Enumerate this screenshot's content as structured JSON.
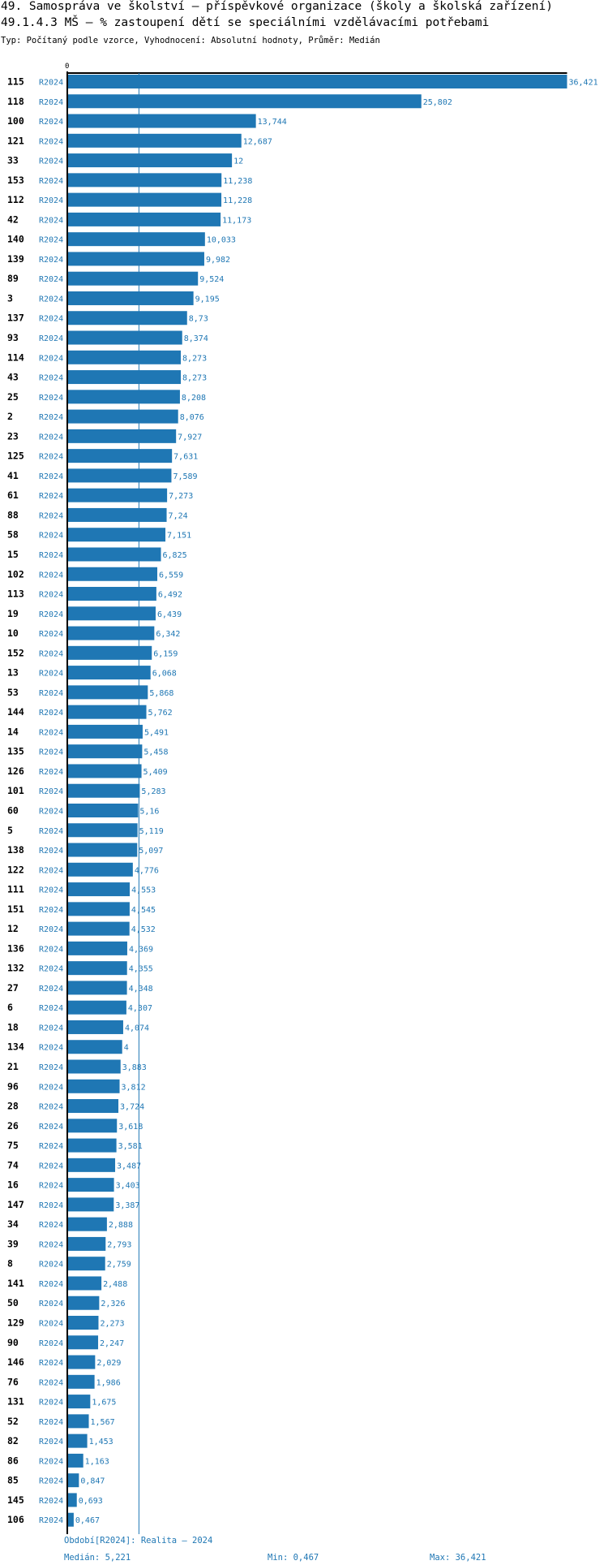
{
  "header": {
    "title_line1": "49. Samospráva ve školství – příspěvkové organizace (školy a školská zařízení)",
    "title_line2": "49.1.4.3 MŠ – % zastoupení dětí se speciálními vzdělávacími potřebami",
    "subtitle": "Typ: Počítaný podle vzorce, Vyhodnocení: Absolutní hodnoty, Průměr: Medián"
  },
  "colors": {
    "bar": "#1f77b4",
    "label": "#1f77b4",
    "axis": "#000000",
    "median_line": "#1f77b4"
  },
  "chart_data": {
    "type": "bar",
    "orientation": "horizontal",
    "x_zero_label": "0",
    "series_label": "R2024",
    "median": 5.221,
    "xlim": [
      0,
      36.421
    ],
    "rows": [
      {
        "id": "115",
        "value": 36.421,
        "label": "36,421"
      },
      {
        "id": "118",
        "value": 25.802,
        "label": "25,802"
      },
      {
        "id": "100",
        "value": 13.744,
        "label": "13,744"
      },
      {
        "id": "121",
        "value": 12.687,
        "label": "12,687"
      },
      {
        "id": "33",
        "value": 12,
        "label": "12"
      },
      {
        "id": "153",
        "value": 11.238,
        "label": "11,238"
      },
      {
        "id": "112",
        "value": 11.228,
        "label": "11,228"
      },
      {
        "id": "42",
        "value": 11.173,
        "label": "11,173"
      },
      {
        "id": "140",
        "value": 10.033,
        "label": "10,033"
      },
      {
        "id": "139",
        "value": 9.982,
        "label": "9,982"
      },
      {
        "id": "89",
        "value": 9.524,
        "label": "9,524"
      },
      {
        "id": "3",
        "value": 9.195,
        "label": "9,195"
      },
      {
        "id": "137",
        "value": 8.73,
        "label": "8,73"
      },
      {
        "id": "93",
        "value": 8.374,
        "label": "8,374"
      },
      {
        "id": "114",
        "value": 8.273,
        "label": "8,273"
      },
      {
        "id": "43",
        "value": 8.273,
        "label": "8,273"
      },
      {
        "id": "25",
        "value": 8.208,
        "label": "8,208"
      },
      {
        "id": "2",
        "value": 8.076,
        "label": "8,076"
      },
      {
        "id": "23",
        "value": 7.927,
        "label": "7,927"
      },
      {
        "id": "125",
        "value": 7.631,
        "label": "7,631"
      },
      {
        "id": "41",
        "value": 7.589,
        "label": "7,589"
      },
      {
        "id": "61",
        "value": 7.273,
        "label": "7,273"
      },
      {
        "id": "88",
        "value": 7.24,
        "label": "7,24"
      },
      {
        "id": "58",
        "value": 7.151,
        "label": "7,151"
      },
      {
        "id": "15",
        "value": 6.825,
        "label": "6,825"
      },
      {
        "id": "102",
        "value": 6.559,
        "label": "6,559"
      },
      {
        "id": "113",
        "value": 6.492,
        "label": "6,492"
      },
      {
        "id": "19",
        "value": 6.439,
        "label": "6,439"
      },
      {
        "id": "10",
        "value": 6.342,
        "label": "6,342"
      },
      {
        "id": "152",
        "value": 6.159,
        "label": "6,159"
      },
      {
        "id": "13",
        "value": 6.068,
        "label": "6,068"
      },
      {
        "id": "53",
        "value": 5.868,
        "label": "5,868"
      },
      {
        "id": "144",
        "value": 5.762,
        "label": "5,762"
      },
      {
        "id": "14",
        "value": 5.491,
        "label": "5,491"
      },
      {
        "id": "135",
        "value": 5.458,
        "label": "5,458"
      },
      {
        "id": "126",
        "value": 5.409,
        "label": "5,409"
      },
      {
        "id": "101",
        "value": 5.283,
        "label": "5,283"
      },
      {
        "id": "60",
        "value": 5.16,
        "label": "5,16"
      },
      {
        "id": "5",
        "value": 5.119,
        "label": "5,119"
      },
      {
        "id": "138",
        "value": 5.097,
        "label": "5,097"
      },
      {
        "id": "122",
        "value": 4.776,
        "label": "4,776"
      },
      {
        "id": "111",
        "value": 4.553,
        "label": "4,553"
      },
      {
        "id": "151",
        "value": 4.545,
        "label": "4,545"
      },
      {
        "id": "12",
        "value": 4.532,
        "label": "4,532"
      },
      {
        "id": "136",
        "value": 4.369,
        "label": "4,369"
      },
      {
        "id": "132",
        "value": 4.355,
        "label": "4,355"
      },
      {
        "id": "27",
        "value": 4.348,
        "label": "4,348"
      },
      {
        "id": "6",
        "value": 4.307,
        "label": "4,307"
      },
      {
        "id": "18",
        "value": 4.074,
        "label": "4,074"
      },
      {
        "id": "134",
        "value": 4,
        "label": "4"
      },
      {
        "id": "21",
        "value": 3.883,
        "label": "3,883"
      },
      {
        "id": "96",
        "value": 3.812,
        "label": "3,812"
      },
      {
        "id": "28",
        "value": 3.724,
        "label": "3,724"
      },
      {
        "id": "26",
        "value": 3.618,
        "label": "3,618"
      },
      {
        "id": "75",
        "value": 3.581,
        "label": "3,581"
      },
      {
        "id": "74",
        "value": 3.487,
        "label": "3,487"
      },
      {
        "id": "16",
        "value": 3.403,
        "label": "3,403"
      },
      {
        "id": "147",
        "value": 3.387,
        "label": "3,387"
      },
      {
        "id": "34",
        "value": 2.888,
        "label": "2,888"
      },
      {
        "id": "39",
        "value": 2.793,
        "label": "2,793"
      },
      {
        "id": "8",
        "value": 2.759,
        "label": "2,759"
      },
      {
        "id": "141",
        "value": 2.488,
        "label": "2,488"
      },
      {
        "id": "50",
        "value": 2.326,
        "label": "2,326"
      },
      {
        "id": "129",
        "value": 2.273,
        "label": "2,273"
      },
      {
        "id": "90",
        "value": 2.247,
        "label": "2,247"
      },
      {
        "id": "146",
        "value": 2.029,
        "label": "2,029"
      },
      {
        "id": "76",
        "value": 1.986,
        "label": "1,986"
      },
      {
        "id": "131",
        "value": 1.675,
        "label": "1,675"
      },
      {
        "id": "52",
        "value": 1.567,
        "label": "1,567"
      },
      {
        "id": "82",
        "value": 1.453,
        "label": "1,453"
      },
      {
        "id": "86",
        "value": 1.163,
        "label": "1,163"
      },
      {
        "id": "85",
        "value": 0.847,
        "label": "0,847"
      },
      {
        "id": "145",
        "value": 0.693,
        "label": "0,693"
      },
      {
        "id": "106",
        "value": 0.467,
        "label": "0,467"
      }
    ]
  },
  "footer": {
    "period": "Období[R2024]: Realita – 2024",
    "median": "Medián: 5,221",
    "min": "Min: 0,467",
    "max": "Max: 36,421"
  }
}
